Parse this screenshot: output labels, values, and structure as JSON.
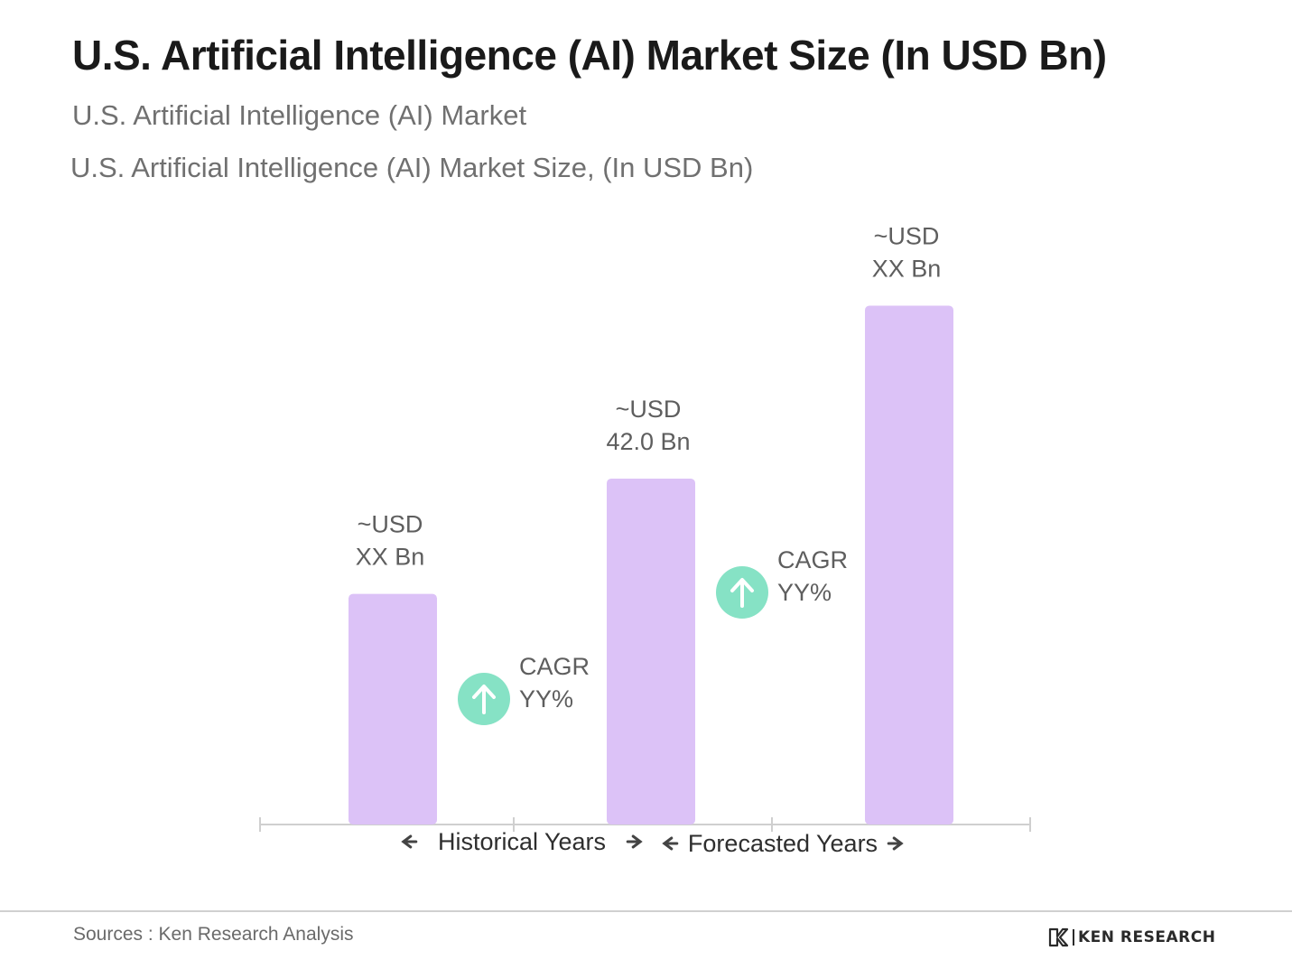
{
  "header": {
    "title": "U.S. Artificial Intelligence (AI) Market Size (In USD Bn)",
    "subtitle_1": "U.S. Artificial Intelligence (AI) Market",
    "subtitle_2": "U.S. Artificial Intelligence (AI) Market Size, (In USD Bn)"
  },
  "chart_data": {
    "type": "bar",
    "categories": [
      "",
      "",
      ""
    ],
    "values": [
      28,
      42,
      63
    ],
    "ylim": [
      0,
      75
    ],
    "grid": false,
    "bar_color": "#dcc2f7",
    "data_labels": [
      [
        "~USD",
        "XX Bn"
      ],
      [
        "~USD",
        "42.0 Bn"
      ],
      [
        "~USD",
        "XX Bn"
      ]
    ],
    "cagr_annotations": [
      {
        "lines": [
          "CAGR",
          "YY%"
        ],
        "icon": "arrow-up-icon",
        "color": "#86e2c5"
      },
      {
        "lines": [
          "CAGR",
          "YY%"
        ],
        "icon": "arrow-up-icon",
        "color": "#86e2c5"
      }
    ],
    "period_labels": [
      {
        "label": "Historical Years"
      },
      {
        "label": "Forecasted Years"
      }
    ],
    "axis_color": "#cfcfcf"
  },
  "footer": {
    "source": "Sources : Ken Research Analysis",
    "logo_text": "KEN RESEARCH",
    "logo_icon": "ken-research-logo-icon"
  }
}
